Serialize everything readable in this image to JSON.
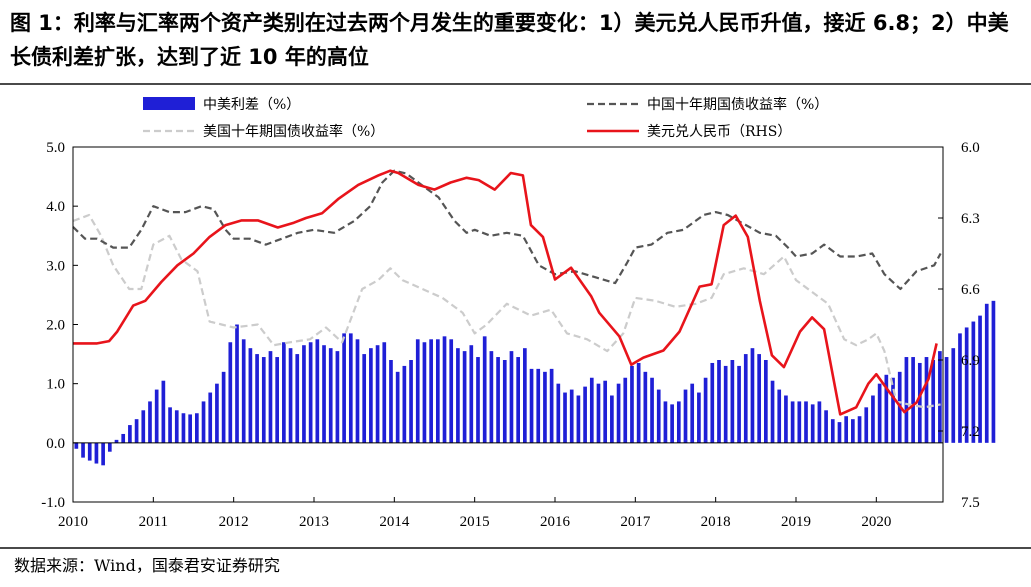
{
  "title": "图 1：利率与汇率两个资产类别在过去两个月发生的重要变化：1）美元兑人民币升值，接近 6.8；2）中美长债利差扩张，达到了近 10 年的高位",
  "source": "数据来源：Wind，国泰君安证券研究",
  "chart_data": {
    "type": "bar+line",
    "x_ticks": [
      "2010",
      "2011",
      "2012",
      "2013",
      "2014",
      "2015",
      "2016",
      "2017",
      "2018",
      "2019",
      "2020"
    ],
    "x_range": [
      2010.0,
      2020.83
    ],
    "y_left": {
      "range": [
        -1.0,
        5.0
      ],
      "ticks": [
        "-1.0",
        "0.0",
        "1.0",
        "2.0",
        "3.0",
        "4.0",
        "5.0"
      ]
    },
    "y_right": {
      "range": [
        6.0,
        7.5
      ],
      "inverted": true,
      "ticks": [
        "6.0",
        "6.3",
        "6.6",
        "6.9",
        "7.2",
        "7.5"
      ]
    },
    "legend": [
      {
        "name": "中美利差（%）",
        "style": "bar",
        "color": "#1f1fd6"
      },
      {
        "name": "中国十年期国债收益率（%）",
        "style": "dash",
        "color": "#555555"
      },
      {
        "name": "美国十年期国债收益率（%）",
        "style": "dash",
        "color": "#cccccc"
      },
      {
        "name": "美元兑人民币（RHS）",
        "style": "line",
        "color": "#e8141b"
      }
    ],
    "series": [
      {
        "name": "中美利差（%）",
        "type": "bar",
        "axis": "left",
        "color": "#1f1fd6",
        "x_start": 2010.0,
        "x_step": 0.08333,
        "values": [
          -0.1,
          -0.25,
          -0.3,
          -0.35,
          -0.38,
          -0.15,
          0.05,
          0.15,
          0.3,
          0.4,
          0.55,
          0.7,
          0.9,
          1.05,
          0.6,
          0.55,
          0.5,
          0.48,
          0.5,
          0.7,
          0.85,
          1.0,
          1.2,
          1.7,
          2.0,
          1.75,
          1.6,
          1.5,
          1.45,
          1.55,
          1.45,
          1.7,
          1.6,
          1.5,
          1.65,
          1.7,
          1.75,
          1.65,
          1.6,
          1.55,
          1.85,
          1.85,
          1.75,
          1.5,
          1.6,
          1.65,
          1.7,
          1.4,
          1.2,
          1.3,
          1.4,
          1.75,
          1.7,
          1.75,
          1.75,
          1.8,
          1.75,
          1.6,
          1.55,
          1.65,
          1.45,
          1.8,
          1.55,
          1.45,
          1.4,
          1.55,
          1.45,
          1.6,
          1.25,
          1.25,
          1.2,
          1.25,
          1.0,
          0.85,
          0.9,
          0.8,
          0.95,
          1.1,
          1.0,
          1.05,
          0.8,
          1.0,
          1.1,
          1.3,
          1.35,
          1.2,
          1.1,
          0.9,
          0.7,
          0.65,
          0.7,
          0.9,
          1.0,
          0.85,
          1.1,
          1.35,
          1.4,
          1.3,
          1.4,
          1.3,
          1.5,
          1.6,
          1.5,
          1.4,
          1.05,
          0.9,
          0.8,
          0.7,
          0.7,
          0.7,
          0.65,
          0.7,
          0.55,
          0.4,
          0.35,
          0.45,
          0.4,
          0.45,
          0.6,
          0.8,
          1.0,
          1.15,
          1.1,
          1.2,
          1.45,
          1.45,
          1.35,
          1.45,
          1.4,
          1.55,
          1.45,
          1.6,
          1.85,
          1.95,
          2.05,
          2.15,
          2.35,
          2.4
        ]
      },
      {
        "name": "中国十年期国债收益率（%）",
        "type": "line",
        "axis": "left",
        "color": "#555555",
        "points": [
          [
            2010.0,
            3.65
          ],
          [
            2010.15,
            3.45
          ],
          [
            2010.3,
            3.45
          ],
          [
            2010.5,
            3.3
          ],
          [
            2010.7,
            3.3
          ],
          [
            2010.85,
            3.6
          ],
          [
            2011.0,
            4.0
          ],
          [
            2011.2,
            3.9
          ],
          [
            2011.4,
            3.9
          ],
          [
            2011.6,
            4.0
          ],
          [
            2011.75,
            3.95
          ],
          [
            2011.9,
            3.6
          ],
          [
            2012.0,
            3.45
          ],
          [
            2012.2,
            3.45
          ],
          [
            2012.4,
            3.35
          ],
          [
            2012.6,
            3.45
          ],
          [
            2012.8,
            3.55
          ],
          [
            2013.0,
            3.6
          ],
          [
            2013.25,
            3.55
          ],
          [
            2013.5,
            3.75
          ],
          [
            2013.7,
            4.0
          ],
          [
            2013.85,
            4.4
          ],
          [
            2014.0,
            4.6
          ],
          [
            2014.15,
            4.55
          ],
          [
            2014.35,
            4.35
          ],
          [
            2014.55,
            4.15
          ],
          [
            2014.75,
            3.75
          ],
          [
            2014.9,
            3.55
          ],
          [
            2015.0,
            3.6
          ],
          [
            2015.2,
            3.5
          ],
          [
            2015.4,
            3.55
          ],
          [
            2015.6,
            3.5
          ],
          [
            2015.8,
            3.0
          ],
          [
            2016.0,
            2.85
          ],
          [
            2016.25,
            2.9
          ],
          [
            2016.5,
            2.8
          ],
          [
            2016.75,
            2.7
          ],
          [
            2016.9,
            3.05
          ],
          [
            2017.0,
            3.3
          ],
          [
            2017.2,
            3.35
          ],
          [
            2017.4,
            3.55
          ],
          [
            2017.6,
            3.6
          ],
          [
            2017.85,
            3.85
          ],
          [
            2018.0,
            3.9
          ],
          [
            2018.15,
            3.85
          ],
          [
            2018.35,
            3.7
          ],
          [
            2018.55,
            3.55
          ],
          [
            2018.75,
            3.5
          ],
          [
            2018.9,
            3.3
          ],
          [
            2019.0,
            3.15
          ],
          [
            2019.2,
            3.2
          ],
          [
            2019.35,
            3.35
          ],
          [
            2019.55,
            3.15
          ],
          [
            2019.75,
            3.15
          ],
          [
            2019.95,
            3.2
          ],
          [
            2020.1,
            2.85
          ],
          [
            2020.3,
            2.6
          ],
          [
            2020.5,
            2.9
          ],
          [
            2020.72,
            3.0
          ],
          [
            2020.8,
            3.2
          ]
        ]
      },
      {
        "name": "美国十年期国债收益率（%）",
        "type": "line",
        "axis": "left",
        "color": "#cccccc",
        "points": [
          [
            2010.0,
            3.75
          ],
          [
            2010.2,
            3.85
          ],
          [
            2010.35,
            3.5
          ],
          [
            2010.5,
            3.0
          ],
          [
            2010.7,
            2.6
          ],
          [
            2010.85,
            2.6
          ],
          [
            2011.0,
            3.35
          ],
          [
            2011.2,
            3.5
          ],
          [
            2011.35,
            3.1
          ],
          [
            2011.55,
            2.9
          ],
          [
            2011.7,
            2.05
          ],
          [
            2011.85,
            2.0
          ],
          [
            2012.0,
            1.95
          ],
          [
            2012.3,
            2.0
          ],
          [
            2012.5,
            1.65
          ],
          [
            2012.7,
            1.7
          ],
          [
            2012.95,
            1.75
          ],
          [
            2013.15,
            1.95
          ],
          [
            2013.35,
            1.7
          ],
          [
            2013.6,
            2.6
          ],
          [
            2013.8,
            2.75
          ],
          [
            2013.95,
            2.95
          ],
          [
            2014.1,
            2.75
          ],
          [
            2014.35,
            2.6
          ],
          [
            2014.6,
            2.45
          ],
          [
            2014.85,
            2.2
          ],
          [
            2015.0,
            1.85
          ],
          [
            2015.15,
            2.0
          ],
          [
            2015.4,
            2.35
          ],
          [
            2015.7,
            2.15
          ],
          [
            2015.95,
            2.25
          ],
          [
            2016.15,
            1.85
          ],
          [
            2016.4,
            1.75
          ],
          [
            2016.65,
            1.55
          ],
          [
            2016.85,
            1.85
          ],
          [
            2017.0,
            2.45
          ],
          [
            2017.25,
            2.4
          ],
          [
            2017.5,
            2.3
          ],
          [
            2017.75,
            2.35
          ],
          [
            2017.95,
            2.45
          ],
          [
            2018.1,
            2.85
          ],
          [
            2018.35,
            2.95
          ],
          [
            2018.6,
            2.85
          ],
          [
            2018.85,
            3.15
          ],
          [
            2019.0,
            2.75
          ],
          [
            2019.2,
            2.55
          ],
          [
            2019.4,
            2.35
          ],
          [
            2019.6,
            1.75
          ],
          [
            2019.75,
            1.65
          ],
          [
            2019.9,
            1.75
          ],
          [
            2020.0,
            1.85
          ],
          [
            2020.1,
            1.55
          ],
          [
            2020.25,
            0.7
          ],
          [
            2020.4,
            0.65
          ],
          [
            2020.6,
            0.6
          ],
          [
            2020.8,
            0.65
          ]
        ]
      },
      {
        "name": "美元兑人民币（RHS）",
        "type": "line",
        "axis": "right",
        "color": "#e8141b",
        "points": [
          [
            2010.0,
            6.83
          ],
          [
            2010.3,
            6.83
          ],
          [
            2010.45,
            6.82
          ],
          [
            2010.55,
            6.78
          ],
          [
            2010.75,
            6.67
          ],
          [
            2010.9,
            6.65
          ],
          [
            2011.1,
            6.57
          ],
          [
            2011.3,
            6.5
          ],
          [
            2011.5,
            6.45
          ],
          [
            2011.7,
            6.38
          ],
          [
            2011.9,
            6.33
          ],
          [
            2012.1,
            6.31
          ],
          [
            2012.3,
            6.31
          ],
          [
            2012.55,
            6.34
          ],
          [
            2012.75,
            6.32
          ],
          [
            2012.9,
            6.3
          ],
          [
            2013.1,
            6.28
          ],
          [
            2013.3,
            6.22
          ],
          [
            2013.55,
            6.16
          ],
          [
            2013.8,
            6.12
          ],
          [
            2013.95,
            6.1
          ],
          [
            2014.05,
            6.11
          ],
          [
            2014.3,
            6.16
          ],
          [
            2014.5,
            6.18
          ],
          [
            2014.7,
            6.15
          ],
          [
            2014.9,
            6.13
          ],
          [
            2015.05,
            6.14
          ],
          [
            2015.25,
            6.18
          ],
          [
            2015.45,
            6.11
          ],
          [
            2015.6,
            6.12
          ],
          [
            2015.7,
            6.33
          ],
          [
            2015.85,
            6.38
          ],
          [
            2016.0,
            6.56
          ],
          [
            2016.2,
            6.51
          ],
          [
            2016.45,
            6.63
          ],
          [
            2016.55,
            6.7
          ],
          [
            2016.8,
            6.8
          ],
          [
            2016.95,
            6.92
          ],
          [
            2017.1,
            6.89
          ],
          [
            2017.35,
            6.86
          ],
          [
            2017.55,
            6.78
          ],
          [
            2017.8,
            6.59
          ],
          [
            2017.95,
            6.58
          ],
          [
            2018.1,
            6.33
          ],
          [
            2018.25,
            6.29
          ],
          [
            2018.4,
            6.38
          ],
          [
            2018.55,
            6.65
          ],
          [
            2018.7,
            6.88
          ],
          [
            2018.85,
            6.93
          ],
          [
            2019.05,
            6.78
          ],
          [
            2019.2,
            6.72
          ],
          [
            2019.35,
            6.77
          ],
          [
            2019.55,
            7.13
          ],
          [
            2019.75,
            7.1
          ],
          [
            2019.9,
            7.0
          ],
          [
            2020.0,
            6.96
          ],
          [
            2020.15,
            7.03
          ],
          [
            2020.35,
            7.12
          ],
          [
            2020.5,
            7.08
          ],
          [
            2020.65,
            6.98
          ],
          [
            2020.75,
            6.83
          ]
        ]
      }
    ]
  }
}
